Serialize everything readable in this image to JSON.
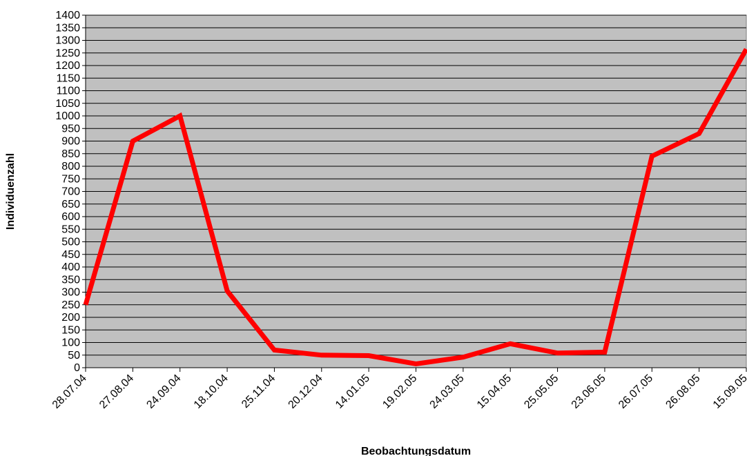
{
  "chart_data": {
    "type": "line",
    "title": "",
    "xlabel": "Beobachtungsdatum",
    "ylabel": "Individuenzahl",
    "categories": [
      "28.07.04",
      "27.08.04",
      "24.09.04",
      "18.10.04",
      "25.11.04",
      "20.12.04",
      "14.01.05",
      "19.02.05",
      "24.03.05",
      "15.04.05",
      "25.05.05",
      "23.06.05",
      "26.07.05",
      "26.08.05",
      "15.09.05"
    ],
    "series": [
      {
        "values": [
          250,
          900,
          1000,
          305,
          70,
          50,
          48,
          15,
          42,
          95,
          58,
          62,
          840,
          930,
          1265
        ]
      }
    ],
    "ylim": [
      0,
      1400
    ],
    "ytick_step": 50,
    "grid": true,
    "plot_background": "#c0c0c0",
    "line_color": "#ff0000",
    "legend": "none"
  }
}
